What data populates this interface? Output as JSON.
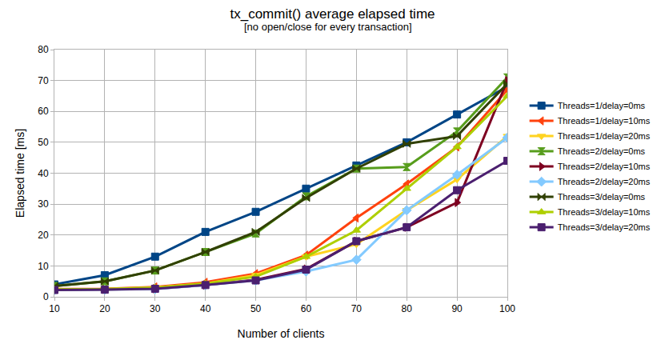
{
  "chart_data": {
    "type": "line",
    "title": "tx_commit() average elapsed time",
    "subtitle": "[no open/close for every transaction]",
    "x_label": "Number of clients",
    "y_label": "Elapsed time [ms]",
    "x": [
      10,
      20,
      30,
      40,
      50,
      60,
      70,
      80,
      90,
      100
    ],
    "xlim": [
      10,
      100
    ],
    "xticks": [
      10,
      20,
      30,
      40,
      50,
      60,
      70,
      80,
      90,
      100
    ],
    "ylim": [
      0,
      80
    ],
    "yticks": [
      0,
      10,
      20,
      30,
      40,
      50,
      60,
      70,
      80
    ],
    "grid": true,
    "legend": "right",
    "series": [
      {
        "name": "Threads=1/delay=0ms",
        "color": "#004586",
        "marker": "square",
        "values": [
          4,
          7,
          13,
          21,
          27.5,
          35,
          42.5,
          50,
          59,
          68
        ]
      },
      {
        "name": "Threads=1/delay=10ms",
        "color": "#ff420e",
        "marker": "triangle-left",
        "values": [
          2.5,
          2.6,
          3.2,
          4.7,
          7.5,
          13.5,
          25.5,
          36.5,
          48.5,
          67
        ]
      },
      {
        "name": "Threads=1/delay=20ms",
        "color": "#ffd320",
        "marker": "triangle-down",
        "values": [
          2.4,
          2.5,
          3,
          4.3,
          7,
          13,
          17,
          28,
          38,
          52
        ]
      },
      {
        "name": "Threads=2/delay=0ms",
        "color": "#579d1c",
        "marker": "hourglass",
        "values": [
          3.5,
          5,
          8.5,
          14.5,
          20.5,
          32.5,
          41.5,
          42,
          53.5,
          71
        ]
      },
      {
        "name": "Threads=2/delay=10ms",
        "color": "#7e0021",
        "marker": "triangle-right",
        "values": [
          2.2,
          2.4,
          2.6,
          3.8,
          5.5,
          9,
          18,
          22.5,
          30.5,
          70
        ]
      },
      {
        "name": "Threads=2/delay=20ms",
        "color": "#83caff",
        "marker": "diamond",
        "values": [
          2.2,
          2.3,
          2.5,
          3.8,
          5.3,
          8.2,
          12,
          28,
          39.5,
          51.5
        ]
      },
      {
        "name": "Threads=3/delay=0ms",
        "color": "#314004",
        "marker": "bowtie",
        "values": [
          3.5,
          5,
          8.5,
          14.5,
          21,
          32,
          41.5,
          49.5,
          52,
          69
        ]
      },
      {
        "name": "Threads=3/delay=10ms",
        "color": "#aecf00",
        "marker": "triangle-up",
        "values": [
          2.4,
          2.5,
          3,
          4.3,
          6.5,
          13,
          21.5,
          35,
          48.5,
          65
        ]
      },
      {
        "name": "Threads=3/delay=20ms",
        "color": "#4b1f6f",
        "marker": "square",
        "values": [
          2.2,
          2.3,
          2.6,
          3.8,
          5.3,
          8.8,
          18,
          22.5,
          34.5,
          44
        ]
      }
    ]
  }
}
